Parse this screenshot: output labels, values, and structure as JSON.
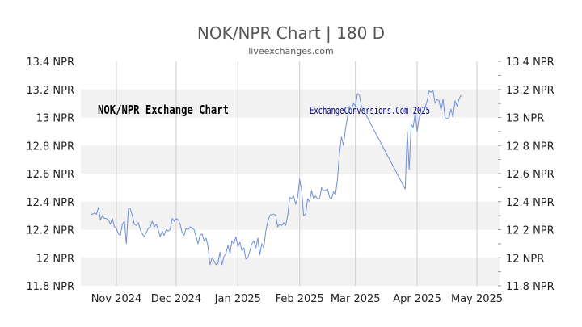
{
  "chart_data": {
    "type": "line",
    "title": "NOK/NPR Chart | 180 D",
    "subtitle": "liveexchanges.com",
    "annotations": [
      "NOK/NPR Exchange Chart",
      "ExchangeConversions.Com 2025"
    ],
    "ylim": [
      11.8,
      13.4
    ],
    "yticks": [
      "13.4 NPR",
      "13.2 NPR",
      "13 NPR",
      "12.8 NPR",
      "12.6 NPR",
      "12.4 NPR",
      "12.2 NPR",
      "12 NPR",
      "11.8 NPR"
    ],
    "ytick_values": [
      13.4,
      13.2,
      13.0,
      12.8,
      12.6,
      12.4,
      12.2,
      12.0,
      11.8
    ],
    "x_range_days": [
      -14,
      181
    ],
    "xticks": [
      {
        "label": "Nov 2024",
        "day": 0
      },
      {
        "label": "Dec 2024",
        "day": 30
      },
      {
        "label": "Jan 2025",
        "day": 61
      },
      {
        "label": "Feb 2025",
        "day": 92
      },
      {
        "label": "Mar 2025",
        "day": 120
      },
      {
        "label": "Apr 2025",
        "day": 151
      },
      {
        "label": "May 2025",
        "day": 181
      }
    ],
    "grid": true,
    "line_color": "#6f8fd8",
    "band_color": "#f2f2f2",
    "series": [
      {
        "points": [
          [
            -13,
            12.31
          ],
          [
            -12,
            12.31
          ],
          [
            -11,
            12.32
          ],
          [
            -10,
            12.31
          ],
          [
            -9,
            12.36
          ],
          [
            -8,
            12.27
          ],
          [
            -7,
            12.3
          ],
          [
            -6,
            12.28
          ],
          [
            -5,
            12.28
          ],
          [
            -4,
            12.27
          ],
          [
            -3,
            12.24
          ],
          [
            -2,
            12.28
          ],
          [
            -1,
            12.22
          ],
          [
            0,
            12.21
          ],
          [
            1,
            12.17
          ],
          [
            2,
            12.16
          ],
          [
            3,
            12.24
          ],
          [
            4,
            12.26
          ],
          [
            5,
            12.1
          ],
          [
            6,
            12.35
          ],
          [
            7,
            12.35
          ],
          [
            8,
            12.3
          ],
          [
            9,
            12.24
          ],
          [
            10,
            12.23
          ],
          [
            11,
            12.25
          ],
          [
            12,
            12.2
          ],
          [
            13,
            12.17
          ],
          [
            14,
            12.15
          ],
          [
            15,
            12.18
          ],
          [
            16,
            12.21
          ],
          [
            17,
            12.22
          ],
          [
            18,
            12.26
          ],
          [
            19,
            12.22
          ],
          [
            20,
            12.24
          ],
          [
            21,
            12.2
          ],
          [
            22,
            12.15
          ],
          [
            23,
            12.19
          ],
          [
            24,
            12.16
          ],
          [
            25,
            12.2
          ],
          [
            26,
            12.19
          ],
          [
            27,
            12.2
          ],
          [
            28,
            12.28
          ],
          [
            29,
            12.26
          ],
          [
            30,
            12.28
          ],
          [
            31,
            12.27
          ],
          [
            32,
            12.24
          ],
          [
            33,
            12.18
          ],
          [
            34,
            12.16
          ],
          [
            35,
            12.21
          ],
          [
            36,
            12.2
          ],
          [
            37,
            12.22
          ],
          [
            38,
            12.21
          ],
          [
            39,
            12.2
          ],
          [
            40,
            12.15
          ],
          [
            41,
            12.1
          ],
          [
            42,
            12.16
          ],
          [
            43,
            12.17
          ],
          [
            44,
            12.12
          ],
          [
            45,
            12.14
          ],
          [
            46,
            12.08
          ],
          [
            47,
            11.95
          ],
          [
            48,
            12.0
          ],
          [
            49,
            11.98
          ],
          [
            50,
            11.95
          ],
          [
            51,
            11.96
          ],
          [
            52,
            12.04
          ],
          [
            53,
            11.95
          ],
          [
            54,
            12.01
          ],
          [
            55,
            12.03
          ],
          [
            56,
            12.09
          ],
          [
            57,
            12.03
          ],
          [
            58,
            12.12
          ],
          [
            59,
            12.1
          ],
          [
            60,
            12.15
          ],
          [
            61,
            12.08
          ],
          [
            62,
            12.11
          ],
          [
            63,
            12.05
          ],
          [
            64,
            12.07
          ],
          [
            65,
            11.99
          ],
          [
            66,
            12.0
          ],
          [
            67,
            12.05
          ],
          [
            68,
            12.1
          ],
          [
            69,
            12.12
          ],
          [
            70,
            12.07
          ],
          [
            71,
            12.14
          ],
          [
            72,
            12.02
          ],
          [
            73,
            12.1
          ],
          [
            74,
            12.07
          ],
          [
            75,
            12.19
          ],
          [
            76,
            12.26
          ],
          [
            77,
            12.3
          ],
          [
            78,
            12.31
          ],
          [
            79,
            12.31
          ],
          [
            80,
            12.3
          ],
          [
            81,
            12.22
          ],
          [
            82,
            12.24
          ],
          [
            83,
            12.23
          ],
          [
            84,
            12.25
          ],
          [
            85,
            12.23
          ],
          [
            86,
            12.3
          ],
          [
            87,
            12.43
          ],
          [
            88,
            12.42
          ],
          [
            89,
            12.44
          ],
          [
            90,
            12.38
          ],
          [
            91,
            12.43
          ],
          [
            92,
            12.56
          ],
          [
            93,
            12.48
          ],
          [
            94,
            12.3
          ],
          [
            95,
            12.31
          ],
          [
            96,
            12.42
          ],
          [
            97,
            12.4
          ],
          [
            98,
            12.48
          ],
          [
            99,
            12.42
          ],
          [
            100,
            12.44
          ],
          [
            101,
            12.42
          ],
          [
            102,
            12.42
          ],
          [
            103,
            12.5
          ],
          [
            104,
            12.48
          ],
          [
            105,
            12.48
          ],
          [
            106,
            12.49
          ],
          [
            107,
            12.43
          ],
          [
            108,
            12.42
          ],
          [
            109,
            12.47
          ],
          [
            110,
            12.45
          ],
          [
            111,
            12.56
          ],
          [
            112,
            12.75
          ],
          [
            113,
            12.86
          ],
          [
            114,
            12.8
          ],
          [
            115,
            12.92
          ],
          [
            116,
            13.0
          ],
          [
            117,
            13.08
          ],
          [
            118,
            13.05
          ],
          [
            119,
            13.1
          ],
          [
            120,
            13.08
          ],
          [
            121,
            13.17
          ],
          [
            122,
            13.16
          ],
          [
            123,
            13.08
          ],
          [
            145,
            12.49
          ],
          [
            146,
            12.9
          ],
          [
            147,
            12.63
          ],
          [
            148,
            12.95
          ],
          [
            149,
            12.93
          ],
          [
            150,
            13.03
          ],
          [
            151,
            12.9
          ],
          [
            152,
            13.0
          ],
          [
            153,
            13.02
          ],
          [
            154,
            13.05
          ],
          [
            155,
            13.07
          ],
          [
            156,
            13.12
          ],
          [
            157,
            13.19
          ],
          [
            158,
            13.18
          ],
          [
            159,
            13.19
          ],
          [
            160,
            13.1
          ],
          [
            161,
            13.13
          ],
          [
            162,
            13.12
          ],
          [
            163,
            13.05
          ],
          [
            164,
            13.13
          ],
          [
            165,
            13.0
          ],
          [
            166,
            12.99
          ],
          [
            167,
            13.0
          ],
          [
            168,
            13.06
          ],
          [
            169,
            13.0
          ],
          [
            170,
            13.12
          ],
          [
            171,
            13.08
          ],
          [
            172,
            13.13
          ],
          [
            173,
            13.16
          ]
        ]
      }
    ]
  }
}
